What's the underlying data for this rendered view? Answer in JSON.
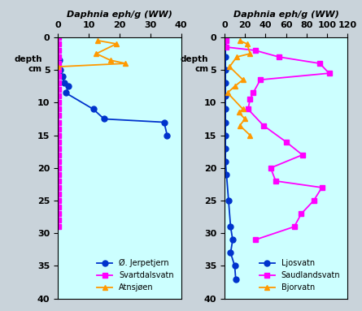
{
  "chart_data": [
    {
      "type": "line",
      "xlabel": "Daphnia eph/g (WW)",
      "ylabel": "depth\ncm",
      "xlim": [
        0,
        40
      ],
      "xticks": [
        0,
        10,
        20,
        30,
        40
      ],
      "ylim": [
        40,
        0
      ],
      "yticks": [
        0,
        5,
        10,
        15,
        20,
        25,
        30,
        35,
        40
      ],
      "legend": "lower right",
      "series": [
        {
          "name": "Ø. Jerpetjern",
          "color": "#0033cc",
          "marker": "o",
          "line_style": "solid",
          "x": [
            0.5,
            0.8,
            1.5,
            2,
            3.5,
            2.5,
            11.5,
            15,
            34.5,
            35.5
          ],
          "y": [
            3.5,
            5,
            6,
            7,
            7.5,
            8.5,
            11,
            12.5,
            13,
            15
          ]
        },
        {
          "name": "Svartdalsvatn",
          "color": "#ff00ff",
          "marker": "s",
          "line_style": "solid",
          "x": [
            0.3,
            0.3,
            0.3,
            0.3,
            0.3,
            0.3,
            0.3,
            0.3,
            0.3,
            0.3,
            0.3,
            0.3,
            0.3,
            0.3,
            0.3,
            0.3,
            0.3,
            0.3,
            0.3,
            0.3,
            0.3,
            0.3,
            0.3,
            0.3,
            0.3,
            0.3,
            0.3,
            0.3,
            0.3,
            0.3
          ],
          "y": [
            0,
            1,
            2,
            3,
            4,
            5,
            6,
            7,
            8,
            9,
            10,
            11,
            12,
            13,
            14,
            15,
            16,
            17,
            18,
            19,
            20,
            21,
            22,
            23,
            24,
            25,
            26,
            27,
            28,
            29
          ]
        },
        {
          "name": "Atnsjøen",
          "color": "#ff9900",
          "marker": "^",
          "line_style": "solid",
          "x": [
            13,
            19,
            12.5,
            17,
            22,
            0
          ],
          "y": [
            0.5,
            1,
            2.5,
            3.5,
            4,
            4.5
          ]
        }
      ]
    },
    {
      "type": "line",
      "xlabel": "Daphnia eph/g (WW)",
      "ylabel": "depth\ncm",
      "xlim": [
        0,
        120
      ],
      "xticks": [
        0,
        20,
        40,
        60,
        80,
        100,
        120
      ],
      "ylim": [
        40,
        0
      ],
      "yticks": [
        0,
        5,
        10,
        15,
        20,
        25,
        30,
        35,
        40
      ],
      "legend": "lower right",
      "series": [
        {
          "name": "Ljosvatn",
          "color": "#0033cc",
          "marker": "o",
          "line_style": "solid",
          "x": [
            1,
            1,
            1,
            1,
            1,
            1,
            1,
            1,
            1,
            1,
            2,
            4,
            6,
            8,
            6,
            10,
            11
          ],
          "y": [
            0,
            3,
            5,
            7,
            9,
            11,
            13,
            15,
            17,
            19,
            21,
            25,
            29,
            31,
            33,
            35,
            37
          ]
        },
        {
          "name": "Saudlandsvatn",
          "color": "#ff00ff",
          "marker": "s",
          "line_style": "solid",
          "x": [
            2,
            2,
            30,
            53,
            93,
            102,
            35,
            28,
            25,
            23,
            38,
            60,
            76,
            45,
            50,
            95,
            87,
            75,
            68,
            30
          ],
          "y": [
            0.5,
            1.5,
            2,
            3,
            4,
            5.5,
            6.5,
            8.5,
            9.5,
            11,
            13.5,
            16,
            18,
            20,
            22,
            23,
            25,
            27,
            29,
            31
          ]
        },
        {
          "name": "Bjorvatn",
          "color": "#ff9900",
          "marker": "^",
          "line_style": "solid",
          "x": [
            15,
            22,
            25,
            12,
            5,
            18,
            10,
            3,
            18,
            14,
            20,
            15,
            25
          ],
          "y": [
            0.5,
            1,
            2.5,
            3,
            4.5,
            6.5,
            7.5,
            8.5,
            11,
            11.5,
            12.5,
            13.5,
            15
          ]
        }
      ]
    }
  ]
}
